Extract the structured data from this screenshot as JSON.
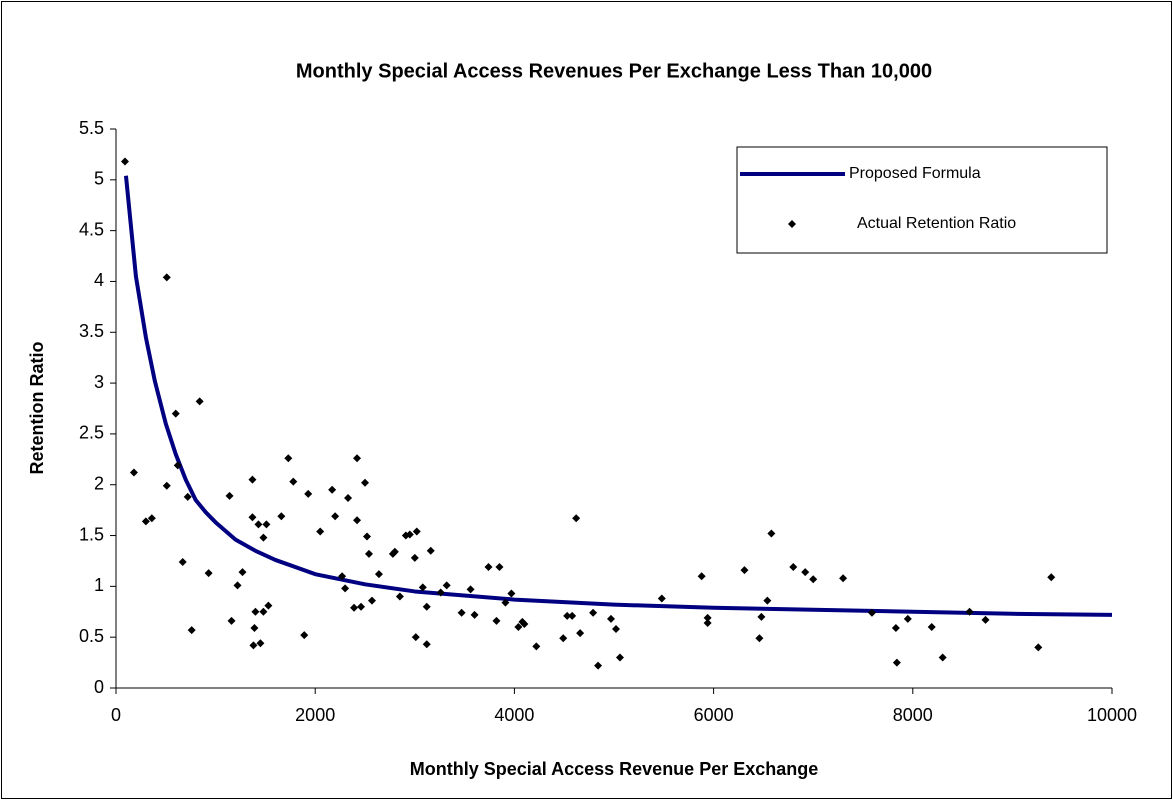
{
  "chart_data": {
    "type": "scatter",
    "title": "Monthly Special Access Revenues Per Exchange Less Than 10,000",
    "xlabel": "Monthly Special Access Revenue Per Exchange",
    "ylabel": "Retention Ratio",
    "xlim": [
      0,
      10000
    ],
    "xticks": [
      0,
      2000,
      4000,
      6000,
      8000,
      10000
    ],
    "ylim": [
      0,
      5.5
    ],
    "yticks": [
      0,
      0.5,
      1,
      1.5,
      2,
      2.5,
      3,
      3.5,
      4,
      4.5,
      5,
      5.5
    ],
    "grid": false,
    "legend": "upper right",
    "series": [
      {
        "name": "Proposed Formula",
        "type": "line",
        "color": "#000080",
        "x": [
          100,
          200,
          300,
          390,
          500,
          600,
          700,
          800,
          900,
          1000,
          1200,
          1400,
          1600,
          2000,
          2500,
          3000,
          4000,
          5000,
          6000,
          7000,
          8000,
          9000,
          10000
        ],
        "values": [
          5.04,
          4.05,
          3.45,
          3.02,
          2.6,
          2.3,
          2.05,
          1.85,
          1.73,
          1.63,
          1.46,
          1.35,
          1.26,
          1.12,
          1.02,
          0.95,
          0.87,
          0.82,
          0.79,
          0.77,
          0.75,
          0.73,
          0.72
        ]
      },
      {
        "name": "Actual Retention Ratio",
        "type": "scatter",
        "color": "#000000",
        "x": [
          180,
          300,
          360,
          90,
          510,
          510,
          620,
          600,
          670,
          720,
          760,
          840,
          930,
          1140,
          1160,
          1220,
          1270,
          1370,
          1370,
          1380,
          1390,
          1400,
          1430,
          1450,
          1480,
          1480,
          1510,
          1530,
          1660,
          1730,
          1780,
          1890,
          1930,
          2050,
          2170,
          2200,
          2270,
          2300,
          2330,
          2390,
          2420,
          2420,
          2460,
          2500,
          2520,
          2540,
          2570,
          2640,
          2780,
          2800,
          2850,
          2910,
          2950,
          3000,
          3010,
          3020,
          3080,
          3120,
          3120,
          3160,
          3260,
          3320,
          3470,
          3560,
          3600,
          3740,
          3820,
          3850,
          3910,
          3970,
          4040,
          4080,
          4100,
          4220,
          4490,
          4530,
          4580,
          4620,
          4660,
          4790,
          4840,
          4970,
          5020,
          5060,
          5480,
          5880,
          5940,
          5940,
          6310,
          6460,
          6480,
          6540,
          6580,
          6800,
          6920,
          7000,
          7300,
          7590,
          7830,
          7840,
          7950,
          8190,
          8300,
          8570,
          8730,
          9260,
          9390
        ],
        "values": [
          2.12,
          1.64,
          1.67,
          5.18,
          4.04,
          1.99,
          2.19,
          2.7,
          1.24,
          1.88,
          0.57,
          2.82,
          1.13,
          1.89,
          0.66,
          1.01,
          1.14,
          2.05,
          1.68,
          0.42,
          0.59,
          0.75,
          1.61,
          0.44,
          1.48,
          0.75,
          1.61,
          0.81,
          1.69,
          2.26,
          2.03,
          0.52,
          1.91,
          1.54,
          1.95,
          1.69,
          1.1,
          0.98,
          1.87,
          0.79,
          1.65,
          2.26,
          0.8,
          2.02,
          1.49,
          1.32,
          0.86,
          1.12,
          1.32,
          1.34,
          0.9,
          1.5,
          1.51,
          1.28,
          0.5,
          1.54,
          0.99,
          0.8,
          0.43,
          1.35,
          0.94,
          1.01,
          0.74,
          0.97,
          0.72,
          1.19,
          0.66,
          1.19,
          0.84,
          0.93,
          0.6,
          0.65,
          0.63,
          0.41,
          0.49,
          0.71,
          0.71,
          1.67,
          0.54,
          0.74,
          0.22,
          0.68,
          0.58,
          0.3,
          0.88,
          1.1,
          0.69,
          0.64,
          1.16,
          0.49,
          0.7,
          0.86,
          1.52,
          1.19,
          1.14,
          1.07,
          1.08,
          0.74,
          0.59,
          0.25,
          0.68,
          0.6,
          0.3,
          0.75,
          0.67,
          0.4,
          1.09
        ]
      }
    ]
  }
}
